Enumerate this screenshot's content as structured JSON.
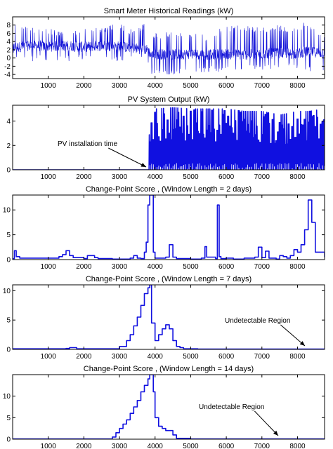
{
  "chart_data": [
    {
      "type": "line",
      "title": "Smart Meter Historical Readings (kW)",
      "xlim": [
        0,
        8760
      ],
      "ylim": [
        -5,
        10
      ],
      "xticks": [
        1000,
        2000,
        3000,
        4000,
        5000,
        6000,
        7000,
        8000
      ],
      "yticks": [
        -4,
        -2,
        0,
        2,
        4,
        6,
        8
      ],
      "series": [
        {
          "x": [
            0,
            500,
            1000,
            1500,
            2000,
            2500,
            3000,
            3300,
            3600,
            3800,
            3900,
            4000,
            4500,
            5000,
            5500,
            6000,
            6500,
            7000,
            7500,
            8000,
            8200,
            8400,
            8760
          ],
          "y": [
            2.5,
            3,
            2.8,
            3,
            2.7,
            3,
            2.8,
            2.5,
            2.2,
            2,
            0.5,
            1,
            0.8,
            1,
            0.8,
            1,
            0.8,
            1,
            1.2,
            1,
            1.5,
            1.5,
            1.2
          ],
          "range_low": [
            0,
            -1,
            -0.5,
            -0.8,
            -0.5,
            -0.8,
            -0.8,
            -0.5,
            -1,
            -1,
            -4.5,
            -4,
            -4,
            -3.8,
            -3.5,
            -3.5,
            -3,
            -3,
            -2.5,
            -3,
            -2.8,
            -4,
            -3
          ],
          "range_high": [
            9,
            7.5,
            7.5,
            6,
            7.5,
            7.5,
            8.5,
            7,
            8,
            9,
            5,
            6,
            6.5,
            6,
            5.5,
            8,
            8,
            7.5,
            8,
            7,
            9,
            8,
            6
          ]
        }
      ]
    },
    {
      "type": "line",
      "title": "PV System Output (kW)",
      "xlim": [
        0,
        8760
      ],
      "ylim": [
        0,
        5.3
      ],
      "xticks": [
        1000,
        2000,
        3000,
        4000,
        5000,
        6000,
        7000,
        8000
      ],
      "yticks": [
        0,
        2,
        4
      ],
      "annotation": {
        "text": "PV installation time",
        "x": 3850,
        "y": 0.3
      },
      "series": [
        {
          "x": [
            0,
            3800,
            3850,
            4000,
            4500,
            5000,
            5500,
            6000,
            6500,
            7000,
            7500,
            8000,
            8300,
            8760
          ],
          "y_peak": [
            0,
            0,
            4.8,
            5.0,
            5.1,
            5.0,
            5.0,
            5.0,
            4.8,
            4.8,
            4.5,
            4.8,
            4.8,
            5.0
          ]
        }
      ]
    },
    {
      "type": "line",
      "title": "Change-Point Score , (Window Length = 2 days)",
      "xlim": [
        0,
        8760
      ],
      "ylim": [
        0,
        13
      ],
      "xticks": [
        1000,
        2000,
        3000,
        4000,
        5000,
        6000,
        7000,
        8000
      ],
      "yticks": [
        0,
        5,
        10
      ],
      "series": [
        {
          "x": [
            0,
            50,
            100,
            200,
            300,
            1300,
            1400,
            1500,
            1600,
            1700,
            2000,
            2100,
            2300,
            2400,
            2800,
            3300,
            3400,
            3500,
            3600,
            3700,
            3750,
            3800,
            3850,
            3900,
            3950,
            4000,
            4300,
            4400,
            4500,
            4600,
            5000,
            5300,
            5400,
            5450,
            5700,
            5750,
            5800,
            5850,
            6000,
            6200,
            6500,
            6800,
            6900,
            7000,
            7100,
            7200,
            7400,
            7500,
            7600,
            7700,
            7800,
            7900,
            8000,
            8100,
            8200,
            8300,
            8400,
            8500,
            8760
          ],
          "y": [
            0.2,
            1.8,
            0.6,
            0.3,
            0.3,
            0.6,
            1.0,
            1.8,
            0.8,
            0.4,
            0.2,
            0.8,
            0.4,
            0.2,
            0.1,
            0.3,
            0.8,
            0.3,
            0.2,
            1.5,
            3.5,
            11,
            13,
            13,
            1.5,
            0.3,
            0.5,
            3.0,
            0.5,
            0.2,
            0.1,
            0.3,
            2.6,
            0.5,
            0.2,
            11,
            0.6,
            0.2,
            0.3,
            0.1,
            0.3,
            0.5,
            2.5,
            0.4,
            1.7,
            0.3,
            0.1,
            0.8,
            0.6,
            0.3,
            0.8,
            2.0,
            1.5,
            3.0,
            6.0,
            12,
            7.5,
            1.5,
            0.5
          ]
        }
      ]
    },
    {
      "type": "line",
      "title": "Change-Point Score , (Window Length = 7 days)",
      "xlim": [
        0,
        8760
      ],
      "ylim": [
        0,
        11
      ],
      "xticks": [
        1000,
        2000,
        3000,
        4000,
        5000,
        6000,
        7000,
        8000
      ],
      "yticks": [
        0,
        5,
        10
      ],
      "annotation": {
        "text": "Undetectable Region",
        "x": 8300,
        "y": 0.3
      },
      "series": [
        {
          "x": [
            0,
            1500,
            1600,
            1700,
            1800,
            2900,
            3000,
            3200,
            3300,
            3400,
            3500,
            3600,
            3700,
            3800,
            3850,
            3900,
            4000,
            4100,
            4200,
            4300,
            4400,
            4500,
            4600,
            4700,
            4800,
            5200,
            8000,
            8760
          ],
          "y": [
            0.1,
            0.15,
            0.3,
            0.3,
            0.1,
            0.1,
            0.5,
            1.5,
            2.5,
            4.0,
            5.5,
            7.5,
            9.5,
            10.5,
            11,
            4.5,
            1.5,
            2.5,
            3.5,
            4.2,
            3.5,
            1.5,
            0.5,
            0.3,
            0.1,
            0.05,
            0.05,
            0.05
          ]
        }
      ]
    },
    {
      "type": "line",
      "title": "Change-Point Score , (Window Length = 14 days)",
      "xlim": [
        0,
        8760
      ],
      "ylim": [
        0,
        15
      ],
      "xticks": [
        1000,
        2000,
        3000,
        4000,
        5000,
        6000,
        7000,
        8000
      ],
      "yticks": [
        0,
        5,
        10
      ],
      "annotation": {
        "text": "Undetectable Region",
        "x": 7650,
        "y": 0.4
      },
      "series": [
        {
          "x": [
            0,
            2700,
            2800,
            2900,
            3000,
            3100,
            3200,
            3300,
            3400,
            3500,
            3600,
            3700,
            3800,
            3850,
            3950,
            4000,
            4100,
            4200,
            4300,
            4400,
            4500,
            4600,
            5000,
            8760
          ],
          "y": [
            0.05,
            0.05,
            0.5,
            1.5,
            2.5,
            3.5,
            4.5,
            6.0,
            7.5,
            9.0,
            11.0,
            12.5,
            14.0,
            15.0,
            11.0,
            5.0,
            3.0,
            2.5,
            2.0,
            2.0,
            1.0,
            0.2,
            0.05,
            0.05
          ]
        }
      ]
    }
  ]
}
